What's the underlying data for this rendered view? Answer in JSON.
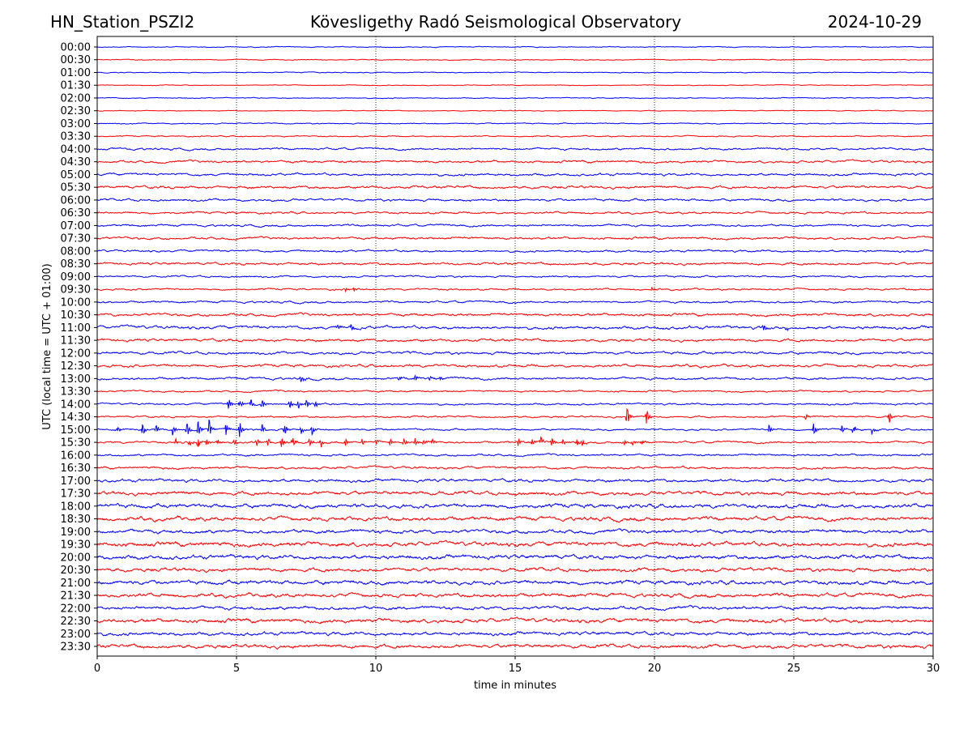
{
  "header": {
    "station": "HN_Station_PSZI2",
    "observatory": "Kövesligethy Radó Seismological Observatory",
    "date": "2024-10-29"
  },
  "chart_data": {
    "type": "line",
    "title": "Kövesligethy Radó Seismological Observatory",
    "xlabel": "time in minutes",
    "ylabel": "UTC (local time = UTC + 01:00)",
    "xlim": [
      0,
      30
    ],
    "xticks": [
      "0",
      "5",
      "10",
      "15",
      "20",
      "25",
      "30"
    ],
    "grid": "vertical dotted lines at each 5 minutes",
    "colors": [
      "#0000ff",
      "#ff0000"
    ],
    "rows": [
      "00:00",
      "00:30",
      "01:00",
      "01:30",
      "02:00",
      "02:30",
      "03:00",
      "03:30",
      "04:00",
      "04:30",
      "05:00",
      "05:30",
      "06:00",
      "06:30",
      "07:00",
      "07:30",
      "08:00",
      "08:30",
      "09:00",
      "09:30",
      "10:00",
      "10:30",
      "11:00",
      "11:30",
      "12:00",
      "12:30",
      "13:00",
      "13:30",
      "14:00",
      "14:30",
      "15:00",
      "15:30",
      "16:00",
      "16:30",
      "17:00",
      "17:30",
      "18:00",
      "18:30",
      "19:00",
      "19:30",
      "20:00",
      "20:30",
      "21:00",
      "21:30",
      "22:00",
      "22:30",
      "23:00",
      "23:30"
    ],
    "noise_level": [
      0.3,
      0.3,
      0.3,
      0.25,
      0.3,
      0.25,
      0.35,
      0.4,
      0.7,
      0.8,
      0.8,
      0.9,
      0.8,
      0.7,
      0.7,
      0.8,
      0.7,
      0.8,
      0.6,
      0.6,
      0.7,
      0.9,
      1.0,
      0.9,
      0.9,
      0.9,
      0.8,
      0.6,
      0.6,
      0.6,
      0.6,
      0.7,
      0.7,
      0.8,
      1.0,
      1.2,
      1.3,
      1.3,
      1.2,
      1.4,
      1.3,
      1.2,
      1.3,
      1.2,
      1.1,
      1.3,
      1.1,
      1.2
    ],
    "events": {
      "19": [
        [
          8.9,
          3
        ],
        [
          9.2,
          3
        ],
        [
          19.9,
          3
        ]
      ],
      "22": [
        [
          8.6,
          6
        ],
        [
          9.1,
          4
        ],
        [
          23.9,
          5
        ],
        [
          24.7,
          3
        ]
      ],
      "26": [
        [
          7.3,
          5
        ],
        [
          10.8,
          3
        ],
        [
          11.4,
          4
        ],
        [
          11.9,
          4
        ],
        [
          12.3,
          3
        ]
      ],
      "28": [
        [
          4.7,
          9
        ],
        [
          5.1,
          8
        ],
        [
          5.5,
          7
        ],
        [
          5.9,
          8
        ],
        [
          6.9,
          8
        ],
        [
          7.2,
          7
        ],
        [
          7.5,
          6
        ],
        [
          7.8,
          6
        ]
      ],
      "29": [
        [
          19.0,
          14
        ],
        [
          19.7,
          10
        ],
        [
          25.4,
          5
        ],
        [
          28.4,
          12
        ]
      ],
      "30": [
        [
          0.7,
          6
        ],
        [
          1.6,
          10
        ],
        [
          2.1,
          8
        ],
        [
          2.7,
          7
        ],
        [
          3.2,
          12
        ],
        [
          3.6,
          14
        ],
        [
          4.0,
          16
        ],
        [
          4.6,
          10
        ],
        [
          5.1,
          12
        ],
        [
          5.9,
          8
        ],
        [
          6.7,
          9
        ],
        [
          7.3,
          7
        ],
        [
          7.7,
          7
        ],
        [
          24.1,
          7
        ],
        [
          25.7,
          9
        ],
        [
          26.7,
          7
        ],
        [
          27.1,
          9
        ],
        [
          27.8,
          6
        ]
      ],
      "31": [
        [
          2.8,
          6
        ],
        [
          3.3,
          5
        ],
        [
          3.6,
          7
        ],
        [
          3.9,
          6
        ],
        [
          4.3,
          5
        ],
        [
          4.9,
          5
        ],
        [
          5.7,
          8
        ],
        [
          6.1,
          6
        ],
        [
          6.6,
          9
        ],
        [
          7.0,
          8
        ],
        [
          7.6,
          7
        ],
        [
          8.0,
          9
        ],
        [
          8.9,
          5
        ],
        [
          9.5,
          4
        ],
        [
          10.0,
          4
        ],
        [
          10.5,
          5
        ],
        [
          11.0,
          5
        ],
        [
          11.4,
          6
        ],
        [
          11.7,
          5
        ],
        [
          12.0,
          5
        ],
        [
          15.1,
          6
        ],
        [
          15.6,
          6
        ],
        [
          15.9,
          6
        ],
        [
          16.3,
          6
        ],
        [
          16.7,
          5
        ],
        [
          17.2,
          5
        ],
        [
          17.4,
          5
        ],
        [
          18.9,
          5
        ],
        [
          19.2,
          5
        ],
        [
          19.5,
          5
        ]
      ]
    }
  }
}
